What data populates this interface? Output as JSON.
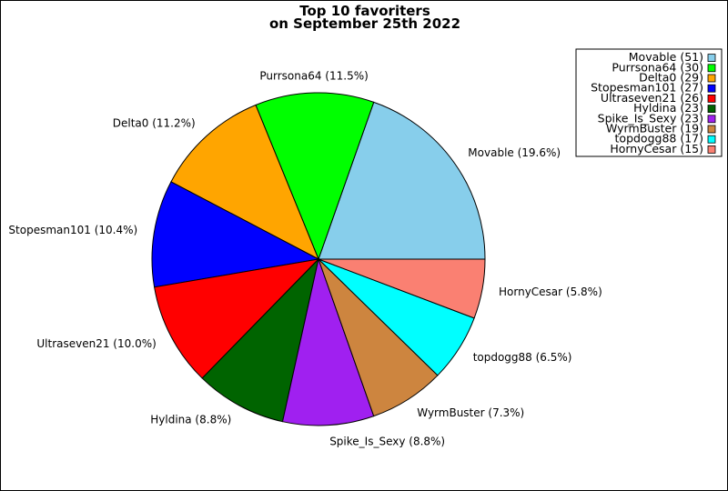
{
  "chart_data": {
    "type": "pie",
    "title": [
      "Top 10 favoriters",
      "on September 25th 2022"
    ],
    "start_angle_deg": 0,
    "direction": "counterclockwise",
    "legend_position": "top-right",
    "slices": [
      {
        "name": "Movable",
        "value": 51,
        "percent_label": "Movable (19.6%)",
        "legend_label": "Movable (51)",
        "color": "#87CEEB"
      },
      {
        "name": "Purrsona64",
        "value": 30,
        "percent_label": "Purrsona64 (11.5%)",
        "legend_label": "Purrsona64 (30)",
        "color": "#00FF00"
      },
      {
        "name": "Delta0",
        "value": 29,
        "percent_label": "Delta0 (11.2%)",
        "legend_label": "Delta0 (29)",
        "color": "#FFA500"
      },
      {
        "name": "Stopesman101",
        "value": 27,
        "percent_label": "Stopesman101 (10.4%)",
        "legend_label": "Stopesman101 (27)",
        "color": "#0000FF"
      },
      {
        "name": "Ultraseven21",
        "value": 26,
        "percent_label": "Ultraseven21 (10.0%)",
        "legend_label": "Ultraseven21 (26)",
        "color": "#FF0000"
      },
      {
        "name": "Hyldina",
        "value": 23,
        "percent_label": "Hyldina (8.8%)",
        "legend_label": "Hyldina (23)",
        "color": "#006400"
      },
      {
        "name": "Spike_Is_Sexy",
        "value": 23,
        "percent_label": "Spike_Is_Sexy (8.8%)",
        "legend_label": "Spike_Is_Sexy (23)",
        "color": "#A020F0"
      },
      {
        "name": "WyrmBuster",
        "value": 19,
        "percent_label": "WyrmBuster (7.3%)",
        "legend_label": "WyrmBuster (19)",
        "color": "#CD853F"
      },
      {
        "name": "topdogg88",
        "value": 17,
        "percent_label": "topdogg88 (6.5%)",
        "legend_label": "topdogg88 (17)",
        "color": "#00FFFF"
      },
      {
        "name": "HornyCesar",
        "value": 15,
        "percent_label": "HornyCesar (5.8%)",
        "legend_label": "HornyCesar (15)",
        "color": "#FA8072"
      }
    ]
  }
}
